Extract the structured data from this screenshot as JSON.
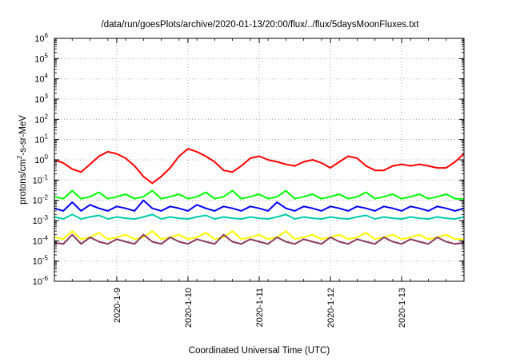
{
  "chart_data": {
    "type": "line",
    "title": "/data/run/goesPlots/archive/2020-01-13/20:00/flux/../flux/5daysMoonFluxes.txt",
    "xlabel": "Coordinated Universal Time (UTC)",
    "ylabel": "protons/cm2-s-sr-MeV",
    "ylabel_parts": {
      "pre": "protons/cm",
      "sup": "2",
      "post": "-s-sr-MeV"
    },
    "yscale": "log",
    "ylim": [
      1e-06,
      1000000.0
    ],
    "y_ticks": [
      {
        "value": 1e-06,
        "base": "10",
        "exp": "-6"
      },
      {
        "value": 1e-05,
        "base": "10",
        "exp": "-5"
      },
      {
        "value": 0.0001,
        "base": "10",
        "exp": "-4"
      },
      {
        "value": 0.001,
        "base": "10",
        "exp": "-3"
      },
      {
        "value": 0.01,
        "base": "10",
        "exp": "-2"
      },
      {
        "value": 0.1,
        "base": "10",
        "exp": "-1"
      },
      {
        "value": 1,
        "base": "10",
        "exp": "0"
      },
      {
        "value": 10,
        "base": "10",
        "exp": "1"
      },
      {
        "value": 100,
        "base": "10",
        "exp": "2"
      },
      {
        "value": 1000,
        "base": "10",
        "exp": "3"
      },
      {
        "value": 10000,
        "base": "10",
        "exp": "4"
      },
      {
        "value": 100000,
        "base": "10",
        "exp": "5"
      },
      {
        "value": 1000000,
        "base": "10",
        "exp": "6"
      }
    ],
    "xlim": [
      "2020-01-08 03:00",
      "2020-01-13 21:00"
    ],
    "x_ticks": [
      {
        "value": "2020-01-09 00:00",
        "label": "2020-1-9"
      },
      {
        "value": "2020-01-10 00:00",
        "label": "2020-1-10"
      },
      {
        "value": "2020-01-11 00:00",
        "label": "2020-1-11"
      },
      {
        "value": "2020-01-12 00:00",
        "label": "2020-1-12"
      },
      {
        "value": "2020-01-13 00:00",
        "label": "2020-1-13"
      }
    ],
    "grid": true,
    "x": [
      "2020-01-08 03:00",
      "2020-01-08 06:00",
      "2020-01-08 09:00",
      "2020-01-08 12:00",
      "2020-01-08 15:00",
      "2020-01-08 18:00",
      "2020-01-08 21:00",
      "2020-01-09 00:00",
      "2020-01-09 03:00",
      "2020-01-09 06:00",
      "2020-01-09 09:00",
      "2020-01-09 12:00",
      "2020-01-09 15:00",
      "2020-01-09 18:00",
      "2020-01-09 21:00",
      "2020-01-10 00:00",
      "2020-01-10 03:00",
      "2020-01-10 06:00",
      "2020-01-10 09:00",
      "2020-01-10 12:00",
      "2020-01-10 15:00",
      "2020-01-10 18:00",
      "2020-01-10 21:00",
      "2020-01-11 00:00",
      "2020-01-11 03:00",
      "2020-01-11 06:00",
      "2020-01-11 09:00",
      "2020-01-11 12:00",
      "2020-01-11 15:00",
      "2020-01-11 18:00",
      "2020-01-11 21:00",
      "2020-01-12 00:00",
      "2020-01-12 03:00",
      "2020-01-12 06:00",
      "2020-01-12 09:00",
      "2020-01-12 12:00",
      "2020-01-12 15:00",
      "2020-01-12 18:00",
      "2020-01-12 21:00",
      "2020-01-13 00:00",
      "2020-01-13 03:00",
      "2020-01-13 06:00",
      "2020-01-13 09:00",
      "2020-01-13 12:00",
      "2020-01-13 15:00",
      "2020-01-13 18:00",
      "2020-01-13 21:00"
    ],
    "series": [
      {
        "color": "#ff0000",
        "values": [
          1.0,
          0.7,
          0.35,
          0.25,
          0.6,
          1.5,
          2.5,
          2.0,
          1.2,
          0.5,
          0.15,
          0.07,
          0.15,
          0.4,
          1.5,
          3.5,
          2.5,
          1.5,
          0.8,
          0.3,
          0.25,
          0.5,
          1.2,
          1.5,
          1.0,
          0.8,
          0.6,
          0.5,
          0.8,
          1.0,
          0.7,
          0.4,
          0.8,
          1.5,
          1.2,
          0.5,
          0.3,
          0.3,
          0.5,
          0.6,
          0.5,
          0.6,
          0.5,
          0.4,
          0.4,
          0.8,
          2.0
        ]
      },
      {
        "color": "#00ff00",
        "values": [
          0.015,
          0.012,
          0.03,
          0.012,
          0.015,
          0.025,
          0.012,
          0.015,
          0.02,
          0.012,
          0.015,
          0.03,
          0.012,
          0.015,
          0.02,
          0.012,
          0.015,
          0.025,
          0.012,
          0.015,
          0.03,
          0.012,
          0.015,
          0.02,
          0.012,
          0.015,
          0.03,
          0.012,
          0.015,
          0.02,
          0.012,
          0.015,
          0.02,
          0.012,
          0.015,
          0.025,
          0.012,
          0.015,
          0.02,
          0.012,
          0.015,
          0.02,
          0.012,
          0.015,
          0.02,
          0.012,
          0.012
        ]
      },
      {
        "color": "#0000ff",
        "values": [
          0.004,
          0.003,
          0.008,
          0.003,
          0.006,
          0.004,
          0.003,
          0.005,
          0.004,
          0.003,
          0.01,
          0.004,
          0.003,
          0.005,
          0.004,
          0.003,
          0.006,
          0.004,
          0.003,
          0.005,
          0.004,
          0.003,
          0.005,
          0.004,
          0.003,
          0.008,
          0.004,
          0.003,
          0.005,
          0.004,
          0.003,
          0.005,
          0.004,
          0.003,
          0.005,
          0.004,
          0.003,
          0.005,
          0.004,
          0.003,
          0.005,
          0.004,
          0.003,
          0.005,
          0.004,
          0.003,
          0.004
        ]
      },
      {
        "color": "#00ccaa",
        "values": [
          0.0015,
          0.0012,
          0.002,
          0.0012,
          0.0015,
          0.0018,
          0.0012,
          0.0015,
          0.0013,
          0.0012,
          0.0015,
          0.002,
          0.0012,
          0.0015,
          0.0013,
          0.0012,
          0.0015,
          0.0018,
          0.0012,
          0.0015,
          0.0013,
          0.0012,
          0.0015,
          0.0013,
          0.0012,
          0.0015,
          0.002,
          0.0012,
          0.0015,
          0.0013,
          0.0012,
          0.0015,
          0.0013,
          0.0012,
          0.0015,
          0.0018,
          0.0012,
          0.0015,
          0.0013,
          0.0012,
          0.0015,
          0.0013,
          0.0012,
          0.0015,
          0.0013,
          0.0012,
          0.0015
        ]
      },
      {
        "color": "#ffff00",
        "values": [
          0.00015,
          0.00012,
          0.0003,
          0.00012,
          0.00015,
          0.00025,
          0.00012,
          0.00015,
          0.0002,
          0.00012,
          0.00015,
          0.0003,
          0.00012,
          0.00015,
          0.0002,
          0.00012,
          0.00015,
          0.00025,
          0.00012,
          0.00015,
          0.0003,
          0.00012,
          0.00015,
          0.0002,
          0.00012,
          0.00015,
          0.0003,
          0.00012,
          0.00015,
          0.0002,
          0.00012,
          0.00015,
          0.0002,
          0.00012,
          0.00015,
          0.00025,
          0.00012,
          0.00015,
          0.0002,
          0.00012,
          0.00015,
          0.0002,
          0.00012,
          0.00015,
          0.0002,
          0.00012,
          0.00012
        ]
      },
      {
        "color": "#8b3a62",
        "values": [
          8e-05,
          7e-05,
          0.0002,
          7e-05,
          0.00015,
          9e-05,
          7e-05,
          0.00012,
          9e-05,
          7e-05,
          0.0002,
          9e-05,
          7e-05,
          0.00015,
          9e-05,
          7e-05,
          0.00012,
          9e-05,
          7e-05,
          0.0002,
          9e-05,
          7e-05,
          0.00012,
          9e-05,
          7e-05,
          0.00015,
          9e-05,
          7e-05,
          0.00012,
          9e-05,
          7e-05,
          0.00015,
          9e-05,
          7e-05,
          0.00012,
          9e-05,
          7e-05,
          0.00015,
          9e-05,
          7e-05,
          0.00012,
          9e-05,
          7e-05,
          0.00015,
          9e-05,
          7e-05,
          8e-05
        ]
      }
    ]
  }
}
